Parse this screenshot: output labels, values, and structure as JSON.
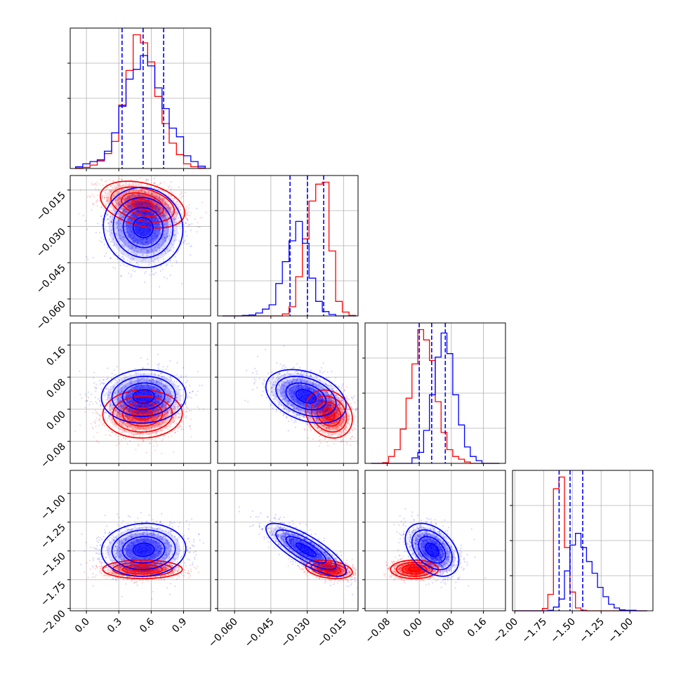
{
  "chart_data": {
    "type": "corner",
    "colors": {
      "series_a": "#0000ff",
      "series_b": "#ff0000"
    },
    "grid": true,
    "parameters": [
      {
        "range": [
          -0.15,
          1.15
        ],
        "ticks": [
          "0.0",
          "0.3",
          "0.6",
          "0.9"
        ],
        "tick_values": [
          0.0,
          0.3,
          0.6,
          0.9
        ]
      },
      {
        "range": [
          -0.067,
          -0.009
        ],
        "ticks": [
          "−0.060",
          "−0.045",
          "−0.030",
          "−0.015"
        ],
        "tick_values": [
          -0.06,
          -0.045,
          -0.03,
          -0.015
        ]
      },
      {
        "range": [
          -0.135,
          0.215
        ],
        "ticks": [
          "−0.08",
          "0.00",
          "0.08",
          "0.16"
        ],
        "tick_values": [
          -0.08,
          0.0,
          0.08,
          0.16
        ]
      },
      {
        "range": [
          -2.02,
          -0.8
        ],
        "ticks": [
          "−2.00",
          "−1.75",
          "−1.50",
          "−1.25",
          "−1.00"
        ],
        "tick_values": [
          -2.0,
          -1.75,
          -1.5,
          -1.25,
          -1.0
        ]
      }
    ],
    "quantiles": [
      {
        "values": [
          0.33,
          0.525,
          0.715
        ]
      },
      {
        "values": [
          -0.0371,
          -0.0299,
          -0.0232
        ]
      },
      {
        "values": [
          0.0,
          0.031,
          0.065
        ]
      },
      {
        "values": [
          -1.615,
          -1.52,
          -1.41
        ]
      }
    ],
    "histograms": [
      {
        "edges_range": [
          -0.1,
          1.1
        ],
        "series_a": [
          0.3,
          0.8,
          1.2,
          1.5,
          3.0,
          6.2,
          10.8,
          15.5,
          17.2,
          19.6,
          17.8,
          14.0,
          10.4,
          7.0,
          5.5,
          2.2,
          1.2,
          0.4
        ],
        "series_b": [
          0.1,
          0.2,
          0.6,
          1.3,
          2.6,
          4.7,
          11.0,
          17.0,
          23.2,
          21.8,
          18.5,
          12.5,
          7.8,
          4.4,
          2.4,
          0.8,
          0.3,
          0.1
        ]
      },
      {
        "edges_range": [
          -0.065,
          -0.01
        ],
        "series_a": [
          0,
          0,
          0,
          0.1,
          0.2,
          0.6,
          1.4,
          2.3,
          6.7,
          11.2,
          15.5,
          19.5,
          15.0,
          7.8,
          3.0,
          0.9,
          0.3,
          0,
          0,
          0
        ],
        "series_b": [
          0,
          0,
          0,
          0,
          0,
          0,
          0,
          0,
          0,
          0.4,
          1.9,
          8.1,
          15.9,
          23.7,
          27.2,
          27.6,
          13.4,
          3.0,
          0.8,
          0.1
        ]
      },
      {
        "edges_range": [
          -0.12,
          0.2
        ],
        "series_a": [
          0,
          0,
          0,
          0,
          0,
          0,
          0,
          0.8,
          1.6,
          4.8,
          10.0,
          15.5,
          19.0,
          16.0,
          10.0,
          5.6,
          2.4,
          1.0,
          0.4,
          0,
          0,
          0
        ],
        "series_b": [
          0,
          0,
          0.1,
          1.0,
          2.0,
          5.0,
          9.5,
          14.5,
          19.5,
          18.0,
          15.0,
          9.0,
          4.5,
          2.0,
          1.0,
          0.6,
          0.2,
          0,
          0,
          0,
          0,
          0
        ]
      },
      {
        "edges_range": [
          -2.0,
          -0.85
        ],
        "series_a": [
          0,
          0,
          0,
          0,
          0,
          0,
          0.1,
          0.8,
          2.5,
          8.5,
          14.0,
          16.5,
          13.5,
          10.5,
          8.0,
          5.0,
          3.0,
          1.4,
          0.6,
          0.2,
          0.1,
          0.1,
          0,
          0
        ],
        "series_b": [
          0,
          0,
          0,
          0,
          0,
          0.5,
          3.5,
          26.0,
          28.5,
          13.5,
          4.0,
          0.6,
          0.1,
          0,
          0,
          0,
          0,
          0,
          0,
          0,
          0,
          0,
          0,
          0
        ]
      }
    ],
    "pairs": [
      {
        "row": 1,
        "col": 0,
        "series_a": {
          "mean": [
            0.525,
            -0.0305
          ],
          "std": [
            0.16,
            0.0072
          ],
          "corr": -0.05
        },
        "series_b": {
          "mean": [
            0.52,
            -0.021
          ],
          "std": [
            0.17,
            0.0042
          ],
          "corr": -0.35
        }
      },
      {
        "row": 2,
        "col": 0,
        "series_a": {
          "mean": [
            0.53,
            0.032
          ],
          "std": [
            0.17,
            0.029
          ],
          "corr": 0.05
        },
        "series_b": {
          "mean": [
            0.52,
            -0.012
          ],
          "std": [
            0.16,
            0.026
          ],
          "corr": 0.02
        }
      },
      {
        "row": 2,
        "col": 1,
        "series_a": {
          "mean": [
            -0.0305,
            0.032
          ],
          "std": [
            0.0072,
            0.029
          ],
          "corr": -0.35
        },
        "series_b": {
          "mean": [
            -0.021,
            -0.012
          ],
          "std": [
            0.0042,
            0.026
          ],
          "corr": -0.2
        }
      },
      {
        "row": 3,
        "col": 0,
        "series_a": {
          "mean": [
            0.53,
            -1.49
          ],
          "std": [
            0.17,
            0.1
          ],
          "corr": 0.05
        },
        "series_b": {
          "mean": [
            0.52,
            -1.66
          ],
          "std": [
            0.16,
            0.035
          ],
          "corr": 0.0
        }
      },
      {
        "row": 3,
        "col": 1,
        "series_a": {
          "mean": [
            -0.0305,
            -1.49
          ],
          "std": [
            0.0072,
            0.1
          ],
          "corr": -0.8
        },
        "series_b": {
          "mean": [
            -0.021,
            -1.66
          ],
          "std": [
            0.0042,
            0.035
          ],
          "corr": -0.3
        }
      },
      {
        "row": 3,
        "col": 2,
        "series_a": {
          "mean": [
            0.032,
            -1.49
          ],
          "std": [
            0.029,
            0.1
          ],
          "corr": -0.4
        },
        "series_b": {
          "mean": [
            -0.012,
            -1.66
          ],
          "std": [
            0.026,
            0.035
          ],
          "corr": 0.0
        }
      }
    ],
    "contour_levels_sigma": [
      0.5,
      1.0,
      1.5,
      2.0
    ]
  }
}
